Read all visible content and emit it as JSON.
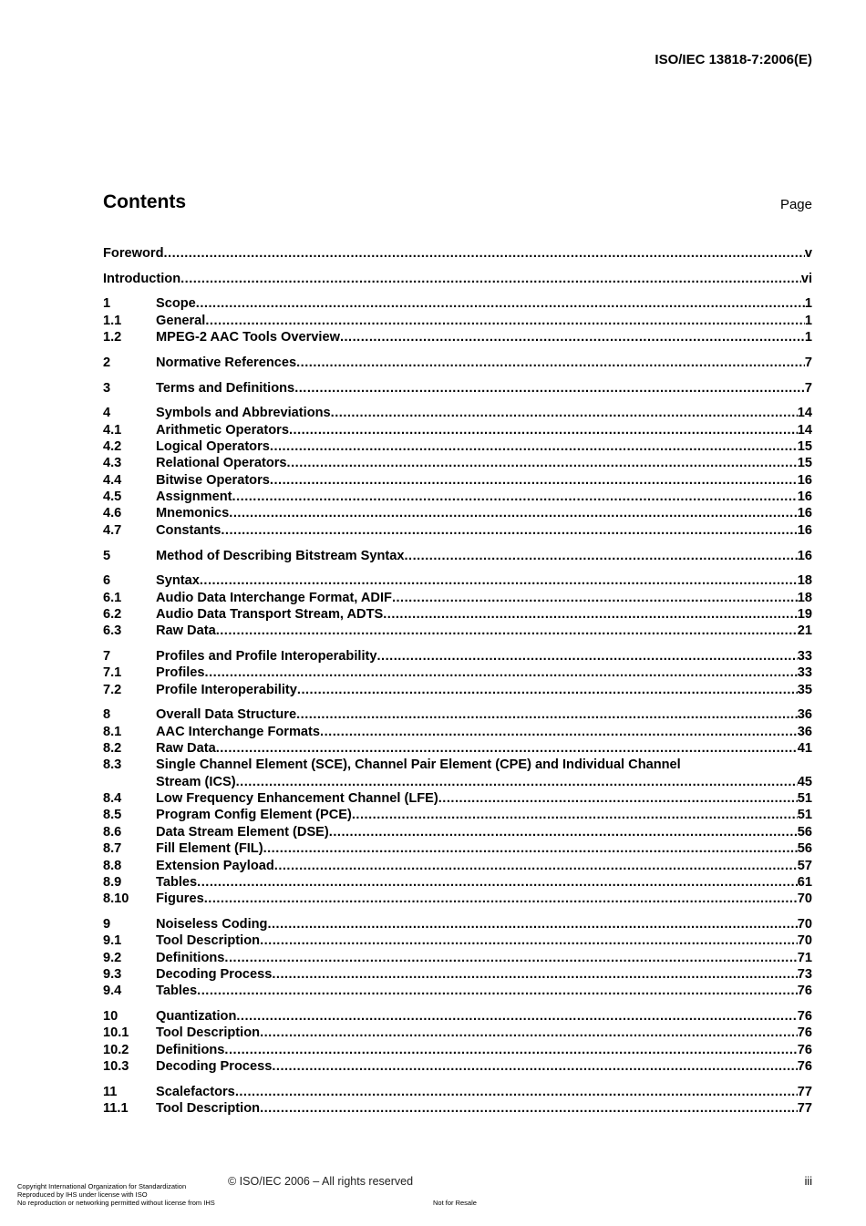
{
  "header": {
    "standard": "ISO/IEC 13818-7:2006(E)"
  },
  "contents": {
    "title": "Contents",
    "page_label": "Page"
  },
  "toc": [
    [
      {
        "num": "",
        "title": "Foreword",
        "page": "v"
      }
    ],
    [
      {
        "num": "",
        "title": "Introduction ",
        "page": "vi"
      }
    ],
    [
      {
        "num": "1",
        "title": "Scope ",
        "page": "1"
      },
      {
        "num": "1.1",
        "title": "General",
        "page": "1"
      },
      {
        "num": "1.2",
        "title": "MPEG-2 AAC Tools Overview",
        "page": "1"
      }
    ],
    [
      {
        "num": "2",
        "title": "Normative References ",
        "page": "7"
      }
    ],
    [
      {
        "num": "3",
        "title": "Terms and Definitions ",
        "page": "7"
      }
    ],
    [
      {
        "num": "4",
        "title": "Symbols and Abbreviations ",
        "page": "14"
      },
      {
        "num": "4.1",
        "title": "Arithmetic Operators ",
        "page": "14"
      },
      {
        "num": "4.2",
        "title": "Logical Operators ",
        "page": "15"
      },
      {
        "num": "4.3",
        "title": "Relational Operators ",
        "page": "15"
      },
      {
        "num": "4.4",
        "title": "Bitwise Operators ",
        "page": "16"
      },
      {
        "num": "4.5",
        "title": "Assignment ",
        "page": "16"
      },
      {
        "num": "4.6",
        "title": "Mnemonics ",
        "page": "16"
      },
      {
        "num": "4.7",
        "title": "Constants ",
        "page": "16"
      }
    ],
    [
      {
        "num": "5",
        "title": "Method of Describing Bitstream Syntax ",
        "page": "16"
      }
    ],
    [
      {
        "num": "6",
        "title": "Syntax ",
        "page": "18"
      },
      {
        "num": "6.1",
        "title": "Audio Data Interchange Format, ADIF",
        "page": "18"
      },
      {
        "num": "6.2",
        "title": "Audio Data Transport Stream, ADTS",
        "page": "19"
      },
      {
        "num": "6.3",
        "title": "Raw Data",
        "page": "21"
      }
    ],
    [
      {
        "num": "7",
        "title": "Profiles and Profile Interoperability",
        "page": "33"
      },
      {
        "num": "7.1",
        "title": "Profiles",
        "page": "33"
      },
      {
        "num": "7.2",
        "title": "Profile Interoperability",
        "page": "35"
      }
    ],
    [
      {
        "num": "8",
        "title": "Overall Data Structure",
        "page": "36"
      },
      {
        "num": "8.1",
        "title": "AAC Interchange Formats ",
        "page": "36"
      },
      {
        "num": "8.2",
        "title": "Raw Data",
        "page": "41"
      },
      {
        "num": "8.3",
        "title": "Single Channel Element (SCE),  Channel Pair Element (CPE) and Individual Channel",
        "title2": "Stream (ICS) ",
        "page": "45"
      },
      {
        "num": "8.4",
        "title": "Low Frequency Enhancement Channel (LFE) ",
        "page": "51"
      },
      {
        "num": "8.5",
        "title": "Program Config Element (PCE)",
        "page": "51"
      },
      {
        "num": "8.6",
        "title": "Data Stream Element (DSE)",
        "page": "56"
      },
      {
        "num": "8.7",
        "title": "Fill Element (FIL)",
        "page": "56"
      },
      {
        "num": "8.8",
        "title": "Extension Payload",
        "page": "57"
      },
      {
        "num": "8.9",
        "title": "Tables",
        "page": "61"
      },
      {
        "num": "8.10",
        "title": "Figures ",
        "page": "70"
      }
    ],
    [
      {
        "num": "9",
        "title": "Noiseless Coding",
        "page": "70"
      },
      {
        "num": "9.1",
        "title": "Tool Description",
        "page": "70"
      },
      {
        "num": "9.2",
        "title": "Definitions ",
        "page": "71"
      },
      {
        "num": "9.3",
        "title": "Decoding Process",
        "page": "73"
      },
      {
        "num": "9.4",
        "title": "Tables",
        "page": "76"
      }
    ],
    [
      {
        "num": "10",
        "title": "Quantization ",
        "page": "76"
      },
      {
        "num": "10.1",
        "title": "Tool Description",
        "page": "76"
      },
      {
        "num": "10.2",
        "title": "Definitions ",
        "page": "76"
      },
      {
        "num": "10.3",
        "title": "Decoding Process",
        "page": "76"
      }
    ],
    [
      {
        "num": "11",
        "title": "Scalefactors",
        "page": "77"
      },
      {
        "num": "11.1",
        "title": "Tool Description",
        "page": "77"
      }
    ]
  ],
  "footer": {
    "copyright": "© ISO/IEC 2006 – All rights reserved",
    "page_number": "iii",
    "license_lines": [
      "Copyright International Organization for Standardization",
      "Reproduced by IHS under license with ISO",
      "No reproduction or networking permitted without license from IHS"
    ],
    "resale": "Not for Resale"
  }
}
